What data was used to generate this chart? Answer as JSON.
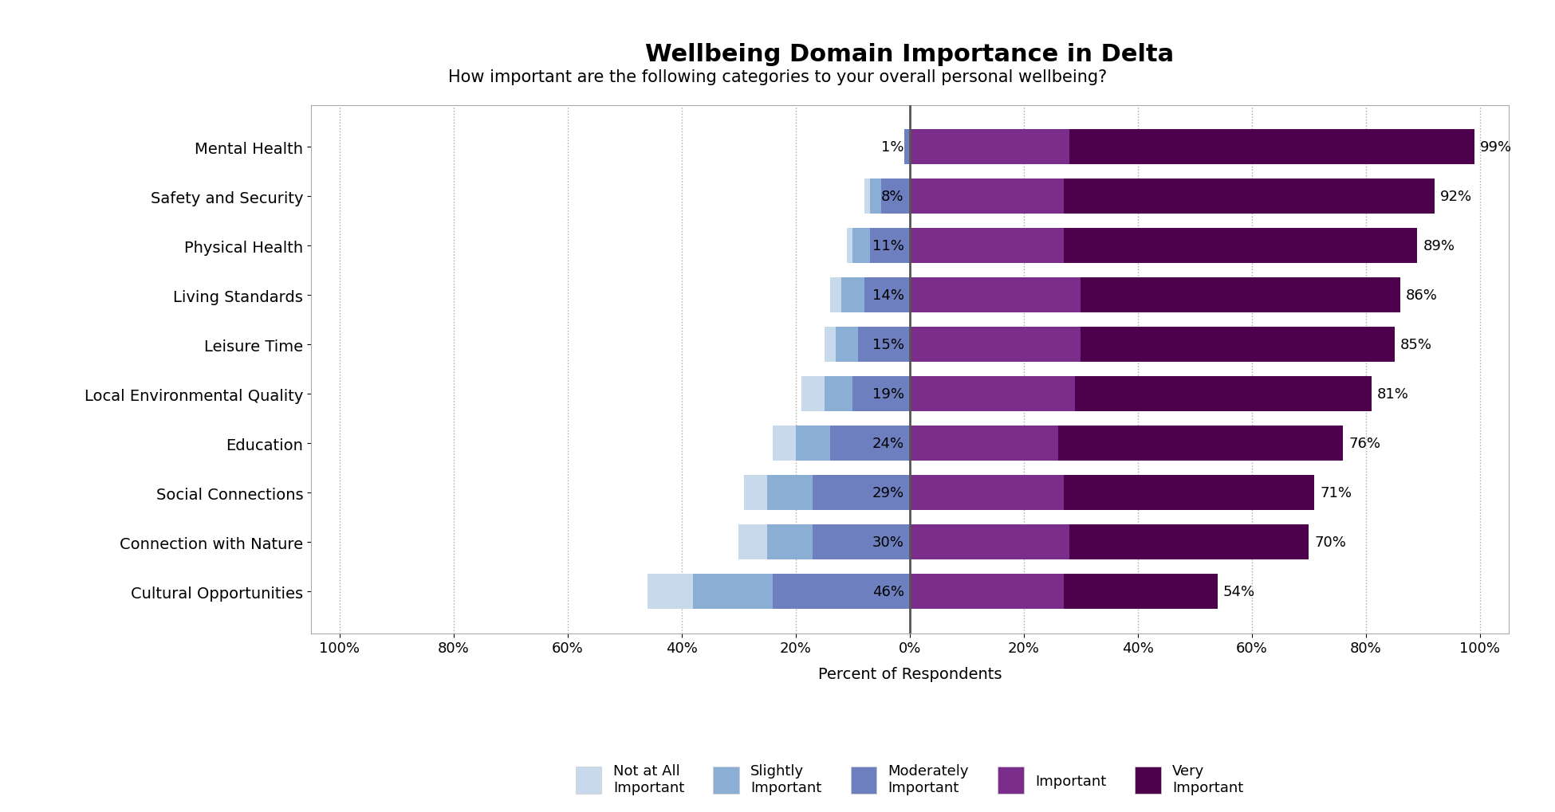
{
  "title": "Wellbeing Domain Importance in Delta",
  "subtitle": "How important are the following categories to your overall personal wellbeing?",
  "xlabel": "Percent of Respondents",
  "categories": [
    "Mental Health",
    "Safety and Security",
    "Physical Health",
    "Living Standards",
    "Leisure Time",
    "Local Environmental Quality",
    "Education",
    "Social Connections",
    "Connection with Nature",
    "Cultural Opportunities"
  ],
  "not_at_all": [
    0,
    1,
    1,
    2,
    2,
    4,
    4,
    4,
    5,
    8
  ],
  "slightly": [
    0,
    2,
    3,
    4,
    4,
    5,
    6,
    8,
    8,
    14
  ],
  "moderately": [
    1,
    5,
    7,
    8,
    9,
    10,
    14,
    17,
    17,
    24
  ],
  "important": [
    28,
    27,
    27,
    30,
    30,
    29,
    26,
    27,
    28,
    27
  ],
  "very_important": [
    71,
    65,
    62,
    56,
    55,
    52,
    50,
    44,
    42,
    27
  ],
  "neg_pct_labels": [
    "1%",
    "8%",
    "11%",
    "14%",
    "15%",
    "19%",
    "24%",
    "29%",
    "30%",
    "46%"
  ],
  "pos_pct_labels": [
    "99%",
    "92%",
    "89%",
    "86%",
    "85%",
    "81%",
    "76%",
    "71%",
    "70%",
    "54%"
  ],
  "colors": {
    "not_at_all": "#c9d9ec",
    "slightly": "#8bafd4",
    "moderately": "#6d7fbf",
    "important": "#7b2d8b",
    "very_important": "#4d004b"
  },
  "legend_labels": [
    "Not at All\nImportant",
    "Slightly\nImportant",
    "Moderately\nImportant",
    "Important",
    "Very\nImportant"
  ],
  "xlim": [
    -105,
    105
  ],
  "xticks": [
    -100,
    -80,
    -60,
    -40,
    -20,
    0,
    20,
    40,
    60,
    80,
    100
  ],
  "xticklabels": [
    "100%",
    "80%",
    "60%",
    "40%",
    "20%",
    "0%",
    "20%",
    "40%",
    "60%",
    "80%",
    "100%"
  ],
  "background_color": "#ffffff",
  "grid_color": "#aaaaaa",
  "bar_height": 0.72
}
